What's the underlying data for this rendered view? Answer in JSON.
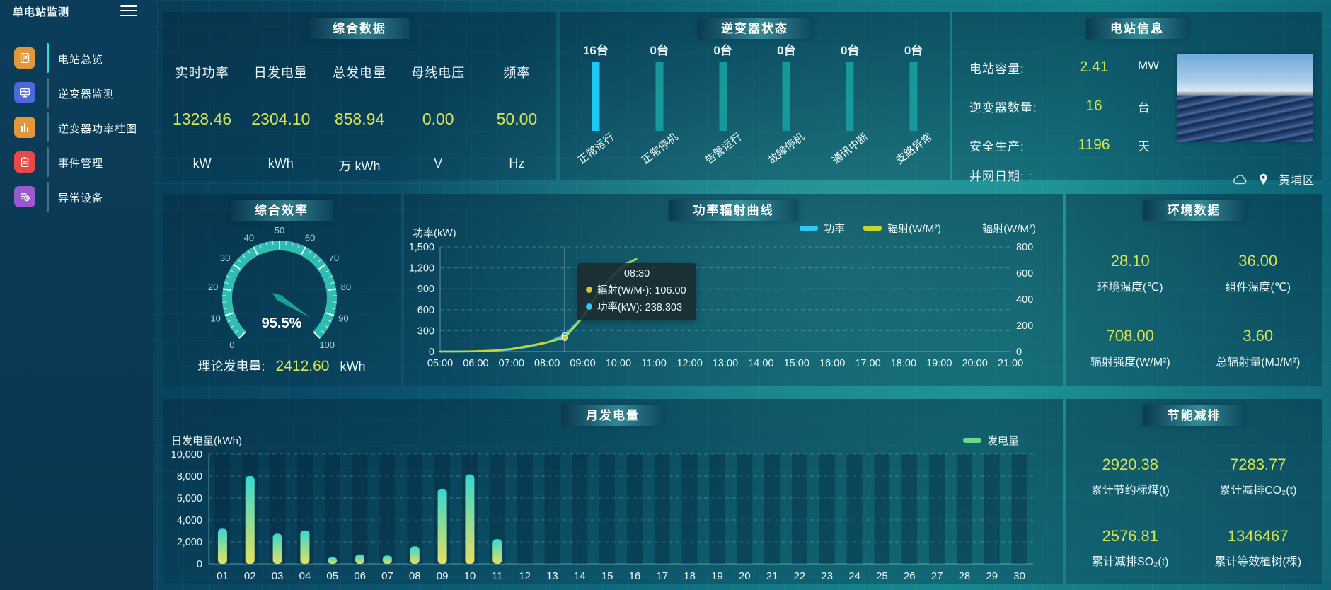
{
  "app": {
    "title": "单电站监测"
  },
  "sidebar": {
    "items": [
      {
        "label": "电站总览",
        "icon": "station-overview",
        "icon_bg": "#e2973a",
        "active": true
      },
      {
        "label": "逆变器监测",
        "icon": "inverter-monitor",
        "icon_bg": "#4d68d8",
        "active": false
      },
      {
        "label": "逆变器功率柱图",
        "icon": "inverter-power-bars",
        "icon_bg": "#e2973a",
        "active": false
      },
      {
        "label": "事件管理",
        "icon": "event-management",
        "icon_bg": "#e84848",
        "active": false
      },
      {
        "label": "异常设备",
        "icon": "abnormal-devices",
        "icon_bg": "#9b59d0",
        "active": false
      }
    ]
  },
  "summary": {
    "title": "综合数据",
    "metrics": [
      {
        "label": "实时功率",
        "value": "1328.46",
        "unit": "kW"
      },
      {
        "label": "日发电量",
        "value": "2304.10",
        "unit": "kWh"
      },
      {
        "label": "总发电量",
        "value": "858.94",
        "unit": "万 kWh"
      },
      {
        "label": "母线电压",
        "value": "0.00",
        "unit": "V"
      },
      {
        "label": "频率",
        "value": "50.00",
        "unit": "Hz"
      }
    ]
  },
  "inverter_status": {
    "title": "逆变器状态",
    "highlight_color": "#1ec8f5",
    "normal_color": "#17989c",
    "items": [
      {
        "count": "16台",
        "label": "正常运行",
        "highlight": true
      },
      {
        "count": "0台",
        "label": "正常停机",
        "highlight": false
      },
      {
        "count": "0台",
        "label": "告警运行",
        "highlight": false
      },
      {
        "count": "0台",
        "label": "故障停机",
        "highlight": false
      },
      {
        "count": "0台",
        "label": "通讯中断",
        "highlight": false
      },
      {
        "count": "0台",
        "label": "支路异常",
        "highlight": false
      }
    ]
  },
  "station_info": {
    "title": "电站信息",
    "rows": [
      {
        "label": "电站容量:",
        "value": "2.41",
        "unit": "MW"
      },
      {
        "label": "逆变器数量:",
        "value": "16",
        "unit": "台"
      },
      {
        "label": "安全生产:",
        "value": "1196",
        "unit": "天"
      },
      {
        "label": "并网日期: :",
        "value": "",
        "unit": ""
      }
    ],
    "location": "黄埔区"
  },
  "efficiency": {
    "title": "综合效率",
    "gauge_label": "95.5%",
    "theory_label": "理论发电量:",
    "theory_value": "2412.60",
    "theory_unit": "kWh"
  },
  "curve_panel": {
    "title": "功率辐射曲线"
  },
  "environment": {
    "title": "环境数据",
    "metrics": [
      {
        "value": "28.10",
        "label": "环境温度(℃)"
      },
      {
        "value": "36.00",
        "label": "组件温度(℃)"
      },
      {
        "value": "708.00",
        "label": "辐射强度(W/M²)"
      },
      {
        "value": "3.60",
        "label": "总辐射量(MJ/M²)"
      }
    ]
  },
  "monthly_panel": {
    "title": "月发电量"
  },
  "savings": {
    "title": "节能减排",
    "metrics": [
      {
        "value": "2920.38",
        "label": "累计节约标煤(t)"
      },
      {
        "value": "7283.77",
        "label": "累计减排CO₂(t)"
      },
      {
        "value": "2576.81",
        "label": "累计减排SO₂(t)"
      },
      {
        "value": "1346467",
        "label": "累计等效植树(棵)"
      }
    ]
  },
  "chart_data": [
    {
      "id": "efficiency-gauge",
      "type": "gauge",
      "title": "综合效率",
      "value": 95.5,
      "display": "95.5%",
      "min": 0,
      "max": 100,
      "major_tick": 10,
      "band_color": "#31c4b6",
      "needle_color": "#18a194",
      "tick_label_color": "#a8d8d4"
    },
    {
      "id": "power-radiation-curve",
      "type": "line",
      "title": "功率辐射曲线",
      "x_tick_labels": [
        "05:00",
        "06:00",
        "07:00",
        "08:00",
        "09:00",
        "10:00",
        "11:00",
        "12:00",
        "13:00",
        "14:00",
        "15:00",
        "16:00",
        "17:00",
        "18:00",
        "19:00",
        "20:00",
        "21:00"
      ],
      "x_range": [
        5,
        21
      ],
      "left_axis": {
        "name": "功率(kW)",
        "ticks": [
          "1,500",
          "1,200",
          "900",
          "600",
          "300",
          "0"
        ],
        "max": 1500
      },
      "right_axis": {
        "name": "辐射(W/M²)",
        "ticks": [
          "800",
          "600",
          "400",
          "200",
          "0"
        ],
        "max": 800
      },
      "legend": [
        {
          "name": "功率",
          "color": "#2fc9f2"
        },
        {
          "name": "辐射(W/M²)",
          "color": "#c9d62e"
        }
      ],
      "series": [
        {
          "name": "功率",
          "unit": "kW",
          "axis": "left",
          "color": "#2fc9f2",
          "points": [
            [
              5,
              0
            ],
            [
              5.5,
              1
            ],
            [
              6,
              3
            ],
            [
              6.5,
              10
            ],
            [
              7,
              30
            ],
            [
              7.5,
              70
            ],
            [
              8,
              130
            ],
            [
              8.5,
              238.3
            ],
            [
              9,
              500
            ],
            [
              9.5,
              900
            ],
            [
              9.9,
              1120
            ],
            [
              10.2,
              1260
            ],
            [
              10.5,
              1328
            ]
          ]
        },
        {
          "name": "辐射",
          "unit": "W/M²",
          "axis": "right",
          "color": "#c9d62e",
          "points": [
            [
              5,
              0
            ],
            [
              5.5,
              0
            ],
            [
              6,
              2
            ],
            [
              6.5,
              8
            ],
            [
              7,
              20
            ],
            [
              7.5,
              45
            ],
            [
              8,
              70
            ],
            [
              8.5,
              106
            ],
            [
              9,
              260
            ],
            [
              9.5,
              480
            ],
            [
              9.9,
              590
            ],
            [
              10.2,
              660
            ],
            [
              10.5,
              708
            ]
          ]
        }
      ],
      "crosshair_x": 8.5,
      "tooltip": {
        "time": "08:30",
        "rows": [
          {
            "dot_color": "#d6c72b",
            "text": "辐射(W/M²): 106.00"
          },
          {
            "dot_color": "#2fc9f2",
            "text": "功率(kW): 238.303"
          }
        ]
      }
    },
    {
      "id": "monthly-generation",
      "type": "bar",
      "title": "月发电量",
      "axis_name": "日发电量(kWh)",
      "y_ticks": [
        "10,000",
        "8,000",
        "6,000",
        "4,000",
        "2,000",
        "0"
      ],
      "y_max": 10000,
      "legend": [
        {
          "name": "发电量",
          "color": "#6fd98b"
        }
      ],
      "bar_gradient_top": "#35d8d0",
      "bar_gradient_bottom": "#e6e05e",
      "categories": [
        "01",
        "02",
        "03",
        "04",
        "05",
        "06",
        "07",
        "08",
        "09",
        "10",
        "11",
        "12",
        "13",
        "14",
        "15",
        "16",
        "17",
        "18",
        "19",
        "20",
        "21",
        "22",
        "23",
        "24",
        "25",
        "26",
        "27",
        "28",
        "29",
        "30"
      ],
      "values": [
        3200,
        8000,
        2750,
        3050,
        600,
        850,
        750,
        1600,
        6850,
        8150,
        2250,
        0,
        0,
        0,
        0,
        0,
        0,
        0,
        0,
        0,
        0,
        0,
        0,
        0,
        0,
        0,
        0,
        0,
        0,
        0
      ]
    },
    {
      "id": "inverter-status-bars",
      "type": "bar",
      "categories": [
        "正常运行",
        "正常停机",
        "告警运行",
        "故障停机",
        "通讯中断",
        "支路异常"
      ],
      "values": [
        16,
        0,
        0,
        0,
        0,
        0
      ],
      "unit": "台"
    }
  ]
}
